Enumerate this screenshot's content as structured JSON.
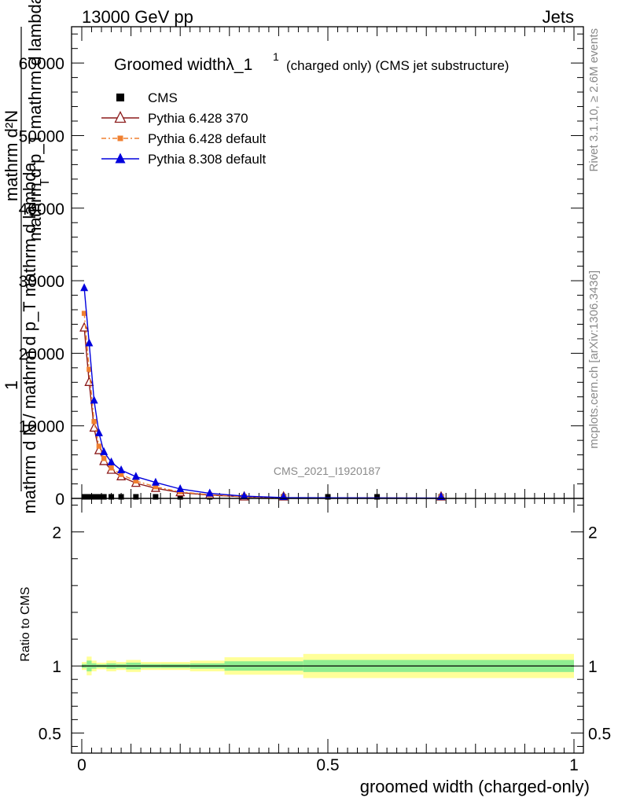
{
  "header": {
    "left": "13000 GeV pp",
    "right": "Jets"
  },
  "side_labels": {
    "rivet": "Rivet 3.1.10, ≥ 2.6M events",
    "mcplots": "mcplots.cern.ch [arXiv:1306.3436]"
  },
  "watermark": "CMS_2021_I1920187",
  "chart_data": [
    {
      "type": "line",
      "title_main": "Groomed widthλ_1",
      "title_sup": "1",
      "title_suffix": "(charged only) (CMS jet substructure)",
      "ylabel_frac_top": "1",
      "ylabel_main": "mathrm d N / mathrm d p_T mathrm d lambda",
      "ylabel_numer": "mathrm d²N",
      "ylabel_denom": "mathrm d p_T mathrm d lambda",
      "ylabel_denom_sub": "T",
      "ylabel_denom_tail": "mathrm d p",
      "xlim": [
        0,
        1
      ],
      "ylim": [
        0,
        65000
      ],
      "yticks": [
        0,
        10000,
        20000,
        30000,
        40000,
        50000,
        60000
      ],
      "ytick_labels": [
        "0",
        "10000",
        "20000",
        "30000",
        "40000",
        "50000",
        "60000"
      ],
      "series": [
        {
          "name": "CMS",
          "color": "#000000",
          "marker": "square",
          "x": [
            0.005,
            0.015,
            0.025,
            0.035,
            0.045,
            0.06,
            0.08,
            0.11,
            0.15,
            0.2,
            0.26,
            0.33,
            0.41,
            0.5,
            0.6,
            0.73
          ],
          "y": [
            150,
            140,
            120,
            100,
            90,
            80,
            70,
            60,
            50,
            40,
            30,
            20,
            12,
            8,
            5,
            3
          ]
        },
        {
          "name": "Pythia 6.428 370",
          "color": "#8b1a1a",
          "marker": "open-triangle",
          "x": [
            0.005,
            0.015,
            0.025,
            0.035,
            0.045,
            0.06,
            0.08,
            0.11,
            0.15,
            0.2,
            0.26,
            0.33,
            0.41,
            0.73
          ],
          "y": [
            23500,
            16000,
            9700,
            6600,
            5100,
            3900,
            3000,
            2100,
            1400,
            800,
            450,
            220,
            80,
            30
          ]
        },
        {
          "name": "Pythia 6.428 default",
          "color": "#f08030",
          "marker": "square",
          "x": [
            0.005,
            0.015,
            0.025,
            0.035,
            0.045,
            0.06,
            0.08,
            0.11,
            0.15,
            0.2,
            0.26,
            0.33,
            0.41,
            0.73
          ],
          "y": [
            25500,
            17800,
            10600,
            7200,
            5500,
            4200,
            3300,
            2400,
            1600,
            900,
            500,
            250,
            90,
            30
          ]
        },
        {
          "name": "Pythia 8.308 default",
          "color": "#0000dd",
          "marker": "triangle",
          "x": [
            0.005,
            0.015,
            0.025,
            0.035,
            0.045,
            0.06,
            0.08,
            0.11,
            0.15,
            0.2,
            0.26,
            0.33,
            0.41,
            0.73
          ],
          "y": [
            29000,
            21400,
            13500,
            9000,
            6400,
            5000,
            3900,
            3000,
            2200,
            1300,
            700,
            320,
            110,
            40
          ]
        }
      ]
    },
    {
      "type": "ratio",
      "ylabel": "Ratio to CMS",
      "xlabel": "groomed width (charged-only)",
      "xlim": [
        0,
        1
      ],
      "ylim": [
        0.35,
        2.25
      ],
      "yticks": [
        0.5,
        1,
        2
      ],
      "ytick_labels": [
        "0.5",
        "1",
        "2"
      ],
      "xticks": [
        0,
        0.5,
        1
      ],
      "xtick_labels": [
        "0",
        "0.5",
        "1"
      ],
      "band_color_outer": "#ffff99",
      "band_color_inner": "#90ee90",
      "bands": [
        {
          "x0": 0.0,
          "x1": 0.01,
          "outer": 0.03,
          "inner": 0.015
        },
        {
          "x0": 0.01,
          "x1": 0.02,
          "outer": 0.07,
          "inner": 0.04
        },
        {
          "x0": 0.02,
          "x1": 0.03,
          "outer": 0.04,
          "inner": 0.02
        },
        {
          "x0": 0.03,
          "x1": 0.04,
          "outer": 0.025,
          "inner": 0.012
        },
        {
          "x0": 0.04,
          "x1": 0.05,
          "outer": 0.025,
          "inner": 0.012
        },
        {
          "x0": 0.05,
          "x1": 0.07,
          "outer": 0.04,
          "inner": 0.02
        },
        {
          "x0": 0.07,
          "x1": 0.09,
          "outer": 0.03,
          "inner": 0.015
        },
        {
          "x0": 0.09,
          "x1": 0.12,
          "outer": 0.045,
          "inner": 0.025
        },
        {
          "x0": 0.12,
          "x1": 0.16,
          "outer": 0.03,
          "inner": 0.015
        },
        {
          "x0": 0.16,
          "x1": 0.22,
          "outer": 0.03,
          "inner": 0.015
        },
        {
          "x0": 0.22,
          "x1": 0.29,
          "outer": 0.04,
          "inner": 0.02
        },
        {
          "x0": 0.29,
          "x1": 0.45,
          "outer": 0.065,
          "inner": 0.035
        },
        {
          "x0": 0.45,
          "x1": 1.0,
          "outer": 0.09,
          "inner": 0.045
        }
      ]
    }
  ]
}
